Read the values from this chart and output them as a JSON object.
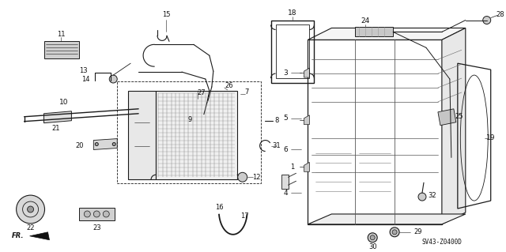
{
  "bg_color": "#ffffff",
  "line_color": "#1a1a1a",
  "text_color": "#111111",
  "figsize": [
    6.4,
    3.19
  ],
  "dpi": 100,
  "diagram_code": "SV43-Z0400D"
}
